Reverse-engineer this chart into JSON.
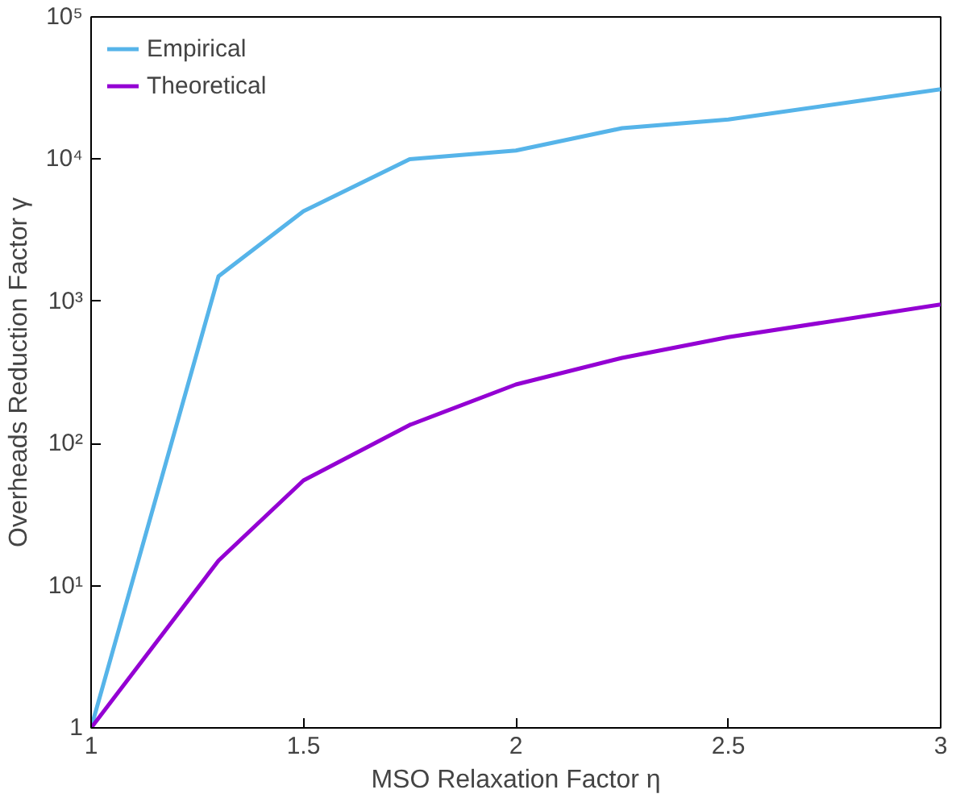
{
  "chart_data": {
    "type": "line",
    "xlabel": "MSO Relaxation Factor η",
    "ylabel": "Overheads Reduction Factor γ",
    "x": [
      1,
      1.3,
      1.5,
      1.75,
      2,
      2.25,
      2.5,
      3
    ],
    "series": [
      {
        "name": "Empirical",
        "color": "#56b4e9",
        "values": [
          1,
          1500,
          4300,
          10000,
          11500,
          16500,
          19000,
          31000
        ]
      },
      {
        "name": "Theoretical",
        "color": "#9400d3",
        "values": [
          1,
          15,
          55,
          135,
          260,
          400,
          560,
          950
        ]
      }
    ],
    "log": "y",
    "xlim": [
      1,
      3
    ],
    "ylim": [
      1,
      100000
    ],
    "xticks": [
      1,
      1.5,
      2,
      2.5,
      3
    ],
    "yticks": [
      1,
      {
        "value": 10,
        "label": "10¹"
      },
      {
        "value": 100,
        "label": "10²"
      },
      {
        "value": 1000,
        "label": "10³"
      },
      {
        "value": 10000,
        "label": "10⁴"
      },
      {
        "value": 100000,
        "label": "10⁵"
      }
    ],
    "grid": false,
    "legend": "top left",
    "marker": "none",
    "line_style": "solid"
  }
}
